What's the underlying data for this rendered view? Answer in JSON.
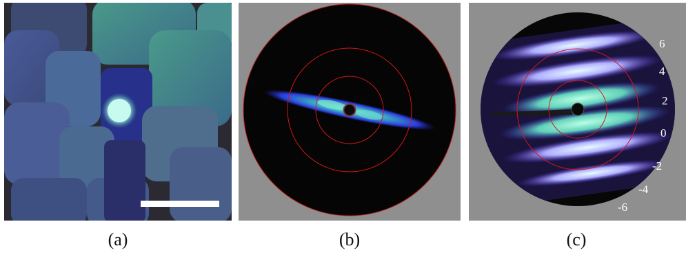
{
  "captions": {
    "a": "(a)",
    "b": "(b)",
    "c": "(c)"
  },
  "panel_c_scale_labels": [
    "6",
    "4",
    "2",
    "0",
    "-2",
    "-4",
    "-6"
  ],
  "colors": {
    "background_gray": "#8f8f8f",
    "detector_black": "#050505",
    "guide_ring_red": "#d01818",
    "scattering_blue": "#3a3ad0",
    "scattering_green": "#60e8b0",
    "scale_bar_white": "#ffffff"
  }
}
